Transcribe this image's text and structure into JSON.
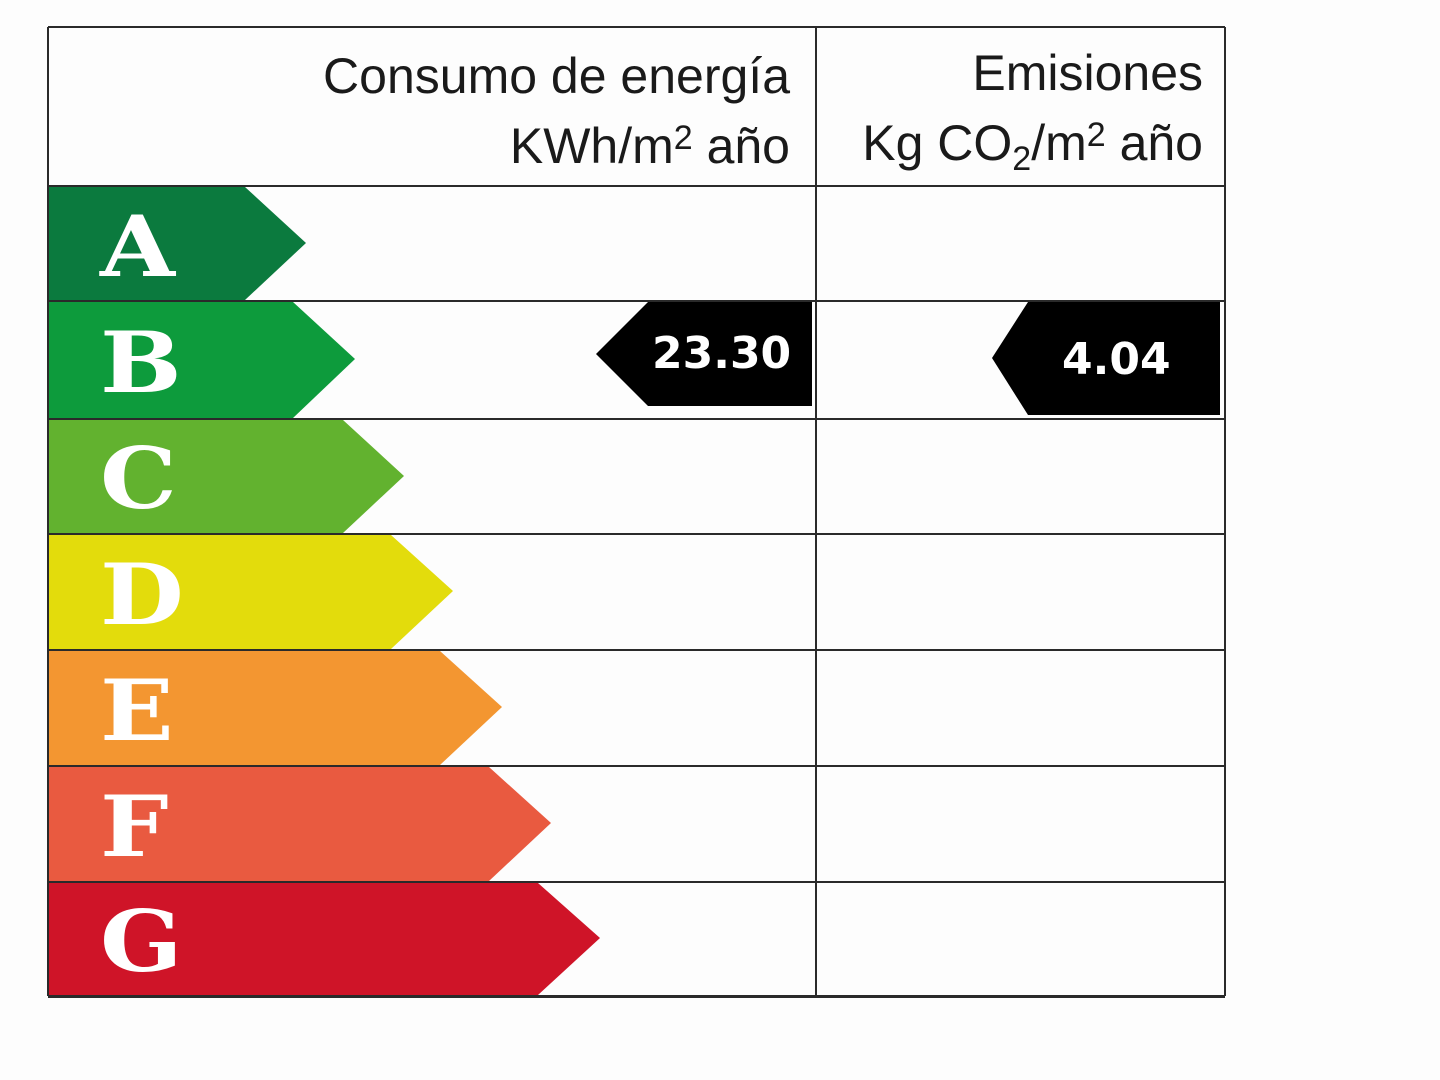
{
  "header": {
    "energy_line1": "Consumo de energía",
    "energy_line2_pre": "KWh/m",
    "energy_sup": "2",
    "energy_line2_post": " año",
    "emissions_line1": "Emisiones",
    "emissions_pre": "Kg CO",
    "emissions_sub": "2",
    "emissions_mid": "/m",
    "emissions_sup": "2",
    "emissions_post": " año"
  },
  "ratings": [
    {
      "letter": "A",
      "color": "#0b7a3e"
    },
    {
      "letter": "B",
      "color": "#0d9b3c"
    },
    {
      "letter": "C",
      "color": "#62b22f"
    },
    {
      "letter": "D",
      "color": "#e3dc0c"
    },
    {
      "letter": "E",
      "color": "#f39631"
    },
    {
      "letter": "F",
      "color": "#e95a40"
    },
    {
      "letter": "G",
      "color": "#cf1428"
    }
  ],
  "energy_value": {
    "rating": "B",
    "value": "23.30"
  },
  "emissions_value": {
    "rating": "B",
    "value": "4.04"
  }
}
